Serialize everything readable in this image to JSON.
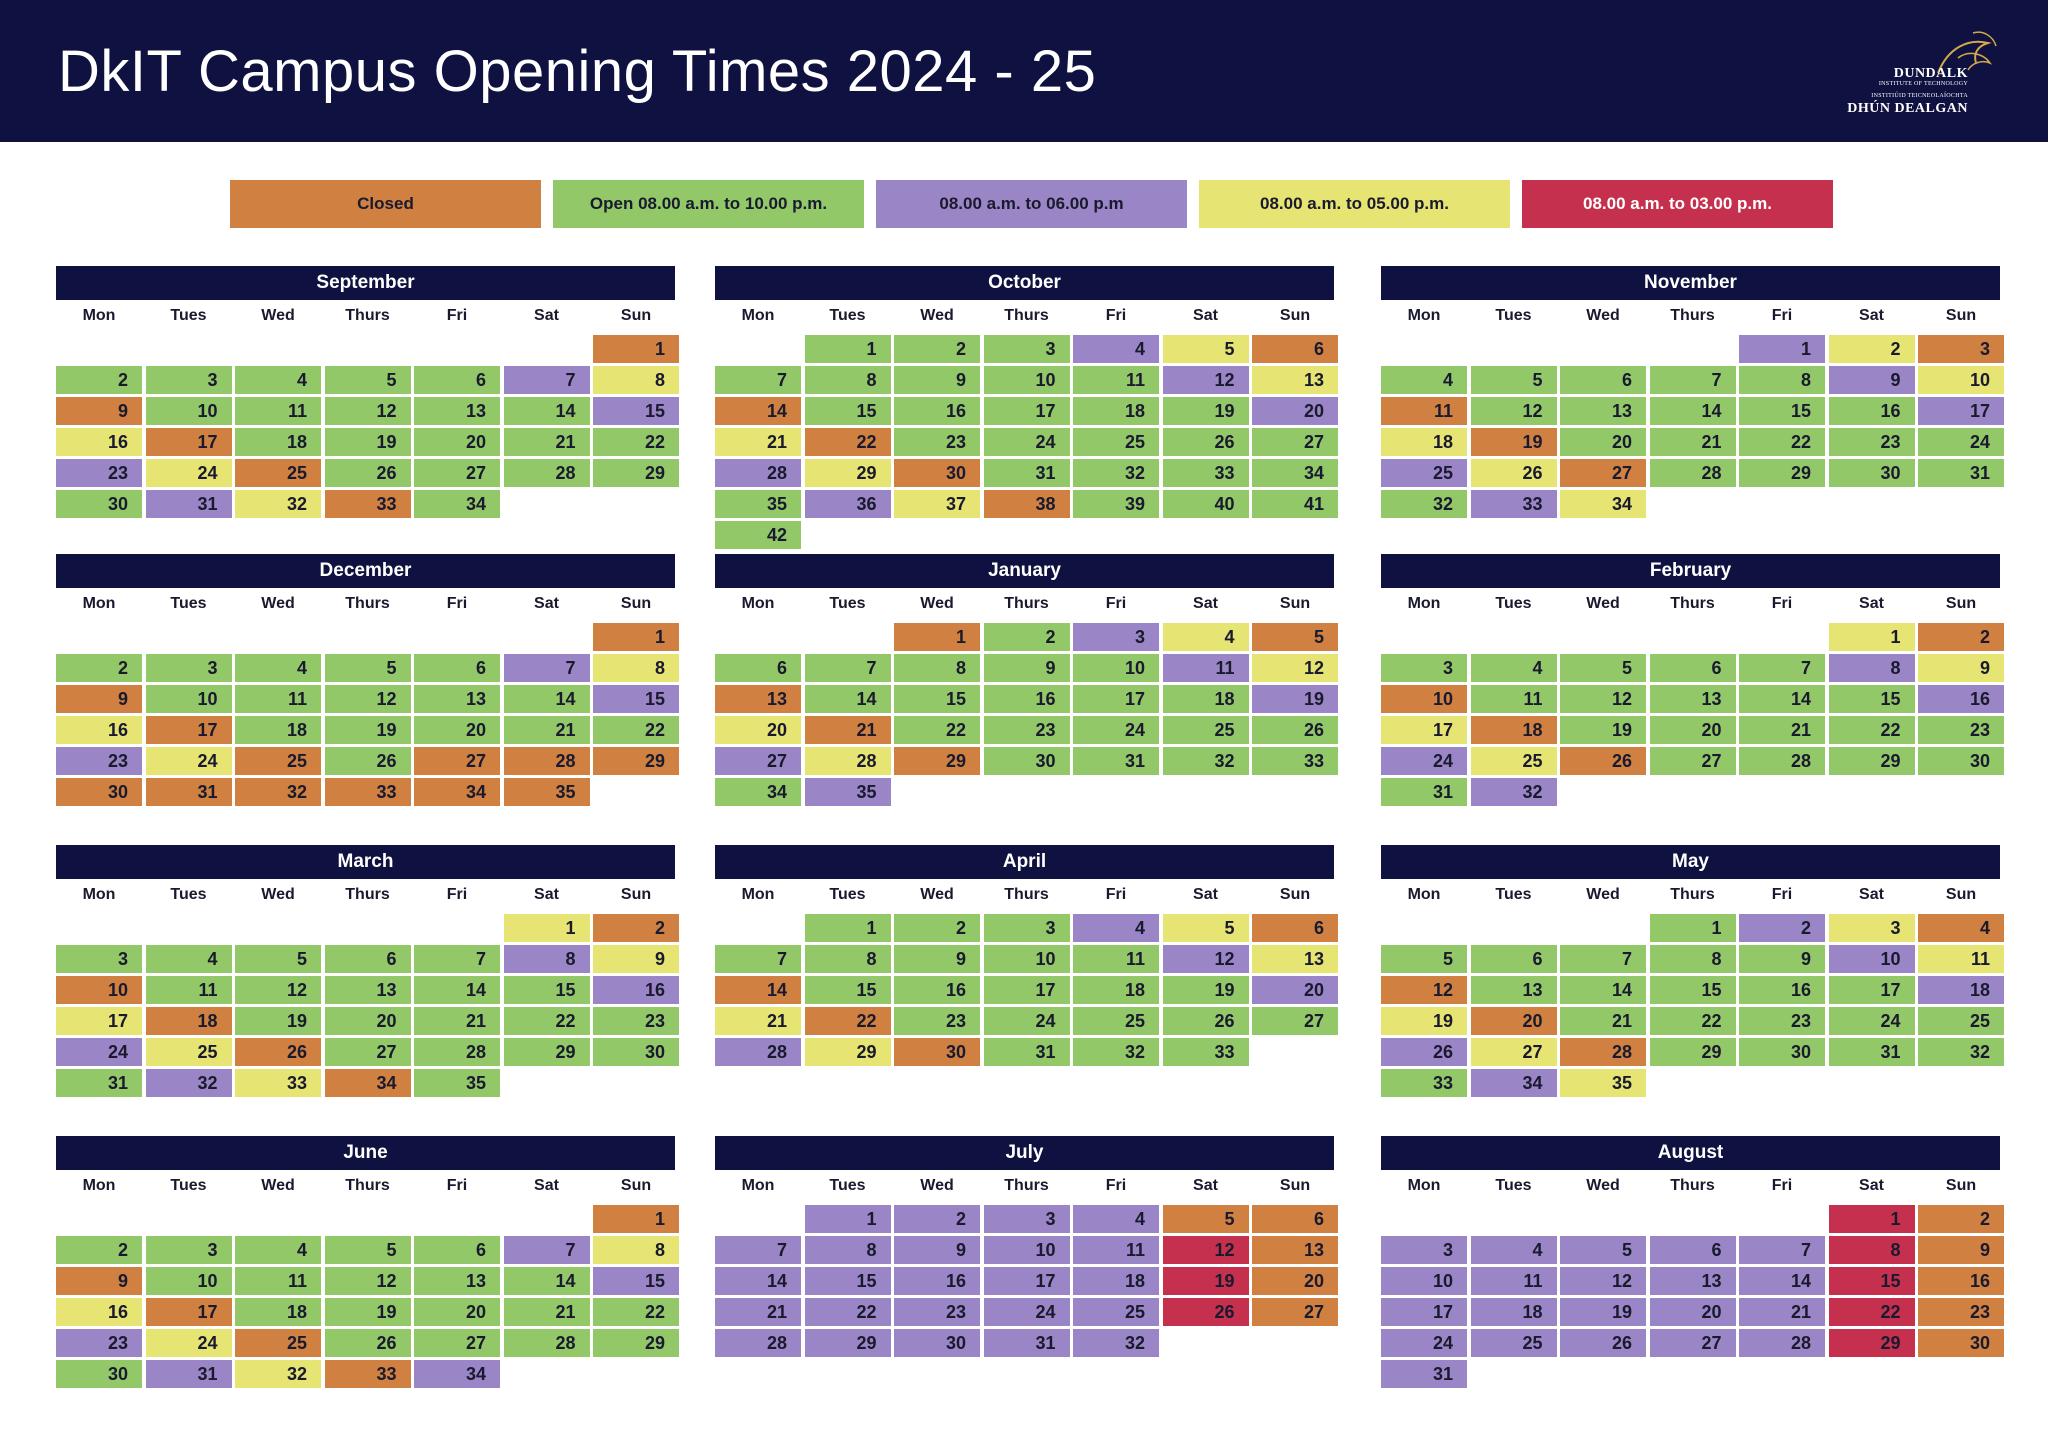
{
  "title": "DkIT Campus Opening Times 2024 - 25",
  "logo": {
    "line1": "DUNDALK",
    "line2": "INSTITUTE OF TECHNOLOGY",
    "line3": "INSTITIÚID TEICNEOLAÍOCHTA",
    "line4": "DHÚN DEALGAN"
  },
  "legend": {
    "closed": "Closed",
    "open": "Open 08.00 a.m. to 10.00 p.m.",
    "six": "08.00 a.m. to 06.00 p.m",
    "five": "08.00 a.m. to 05.00 p.m.",
    "three": "08.00 a.m. to 03.00 p.m."
  },
  "colors": {
    "header": "#0f1140",
    "closed": "#d08040",
    "open": "#93c869",
    "six": "#9a86c6",
    "five": "#e6e472",
    "three": "#c4304d"
  },
  "weekdays": [
    "Mon",
    "Tues",
    "Wed",
    "Thurs",
    "Fri",
    "Sat",
    "Sun"
  ],
  "months": [
    {
      "name": "September",
      "offset": 6,
      "codes": "cgggggpycgggggpycgggggpycgggggpycg"
    },
    {
      "name": "October",
      "offset": 1,
      "codes": "gggpycgggggpycgggggpycgggggpycgggggpycgggg"
    },
    {
      "name": "November",
      "offset": 4,
      "codes": "pycgggggpycgggggpycgggggpycgggggpy"
    },
    {
      "name": "December",
      "offset": 6,
      "codes": "cgggggpycgggggpycgggggpycgccccccccc"
    },
    {
      "name": "January",
      "offset": 2,
      "codes": "cgpycgggggpycgggggpycgggggpycgggggp"
    },
    {
      "name": "February",
      "offset": 5,
      "codes": "ycgggggpycgggggpycgggggpycgggggp"
    },
    {
      "name": "March",
      "offset": 5,
      "codes": "ycgggggpycgggggpycgggggpycgggggpycg"
    },
    {
      "name": "April",
      "offset": 1,
      "codes": "gggpycgggggpycgggggpycgggggpycggg"
    },
    {
      "name": "May",
      "offset": 3,
      "codes": "gpycgggggpycgggggpycgggggpycgggggpy"
    },
    {
      "name": "June",
      "offset": 6,
      "codes": "cgggggpycgggggpycgggggpycgggggpycp"
    },
    {
      "name": "July",
      "offset": 1,
      "codes": "ppppccppppprcppppprcppppprcppppp"
    },
    {
      "name": "August",
      "offset": 5,
      "codes": "rcppppprcppppprcppppprcppppprcp"
    }
  ]
}
